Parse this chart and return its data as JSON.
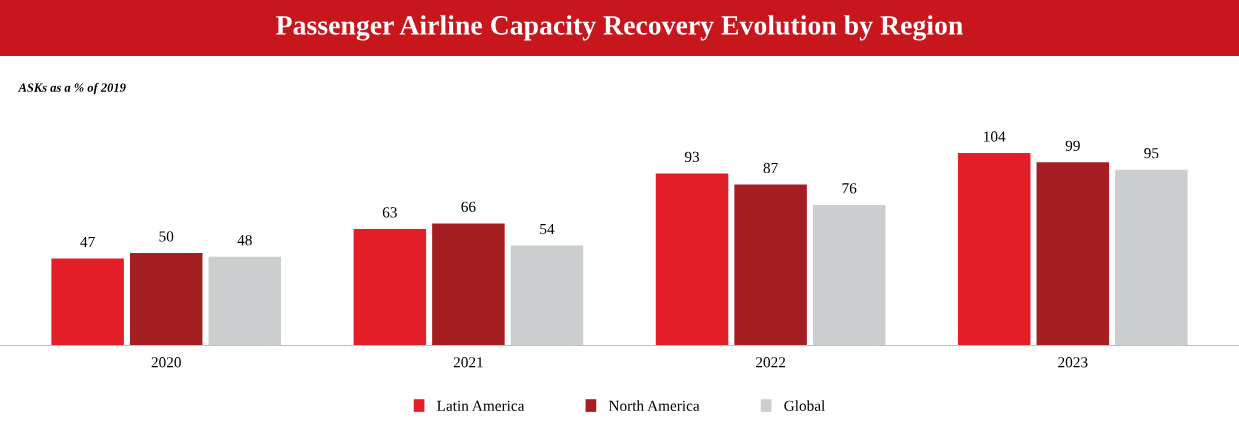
{
  "chart_data": {
    "type": "bar",
    "title": "Passenger Airline Capacity Recovery Evolution by Region",
    "subtitle": "ASKs as a % of 2019",
    "categories": [
      "2020",
      "2021",
      "2022",
      "2023"
    ],
    "series": [
      {
        "name": "Latin America",
        "color": "#e41e26",
        "values": [
          47,
          63,
          93,
          104
        ]
      },
      {
        "name": "North America",
        "color": "#a51e22",
        "values": [
          50,
          66,
          87,
          99
        ]
      },
      {
        "name": "Global",
        "color": "#cbcecf",
        "values": [
          48,
          54,
          76,
          95
        ]
      }
    ],
    "data_labels": true,
    "legend": "bottom",
    "grid": false
  }
}
